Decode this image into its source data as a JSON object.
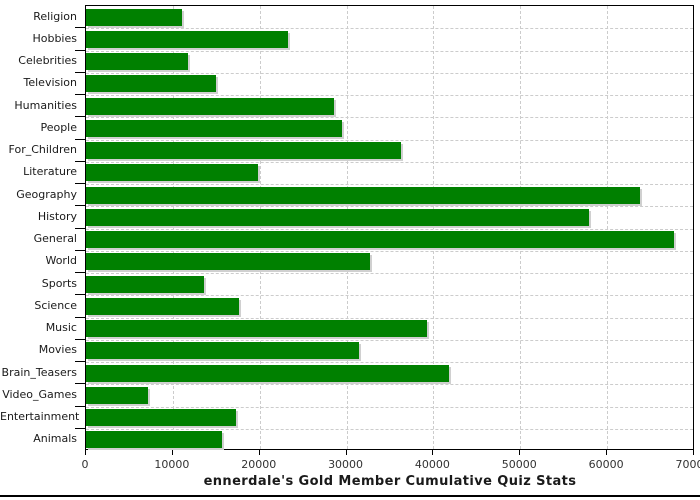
{
  "chart_data": {
    "type": "bar",
    "orientation": "horizontal",
    "title": "ennerdale's Gold Member Cumulative Quiz Stats",
    "categories": [
      "Religion",
      "Hobbies",
      "Celebrities",
      "Television",
      "Humanities",
      "People",
      "For_Children",
      "Literature",
      "Geography",
      "History",
      "General",
      "World",
      "Sports",
      "Science",
      "Music",
      "Movies",
      "Brain_Teasers",
      "Video_Games",
      "Entertainment",
      "Animals"
    ],
    "values": [
      11100,
      23300,
      11700,
      15000,
      28600,
      29500,
      36300,
      19800,
      63800,
      57900,
      67700,
      32700,
      13600,
      17600,
      39300,
      31400,
      41800,
      7100,
      17300,
      15700
    ],
    "xlabel": "",
    "ylabel": "",
    "xlim": [
      0,
      70000
    ],
    "x_ticks": [
      0,
      10000,
      20000,
      30000,
      40000,
      50000,
      60000,
      70000
    ],
    "x_tick_labels": [
      "0",
      "10000",
      "20000",
      "30000",
      "40000",
      "50000",
      "60000",
      "70000"
    ],
    "grid": "dashed",
    "legend_position": "none",
    "colors": {
      "bar_fill": "#008000",
      "bar_shadow": "#d0d0d0",
      "grid_line": "#cccccc",
      "axis_frame": "#000000",
      "tick_label": "#333333",
      "category_label": "#1a1a1a",
      "title_text": "#1a1a1a"
    }
  }
}
